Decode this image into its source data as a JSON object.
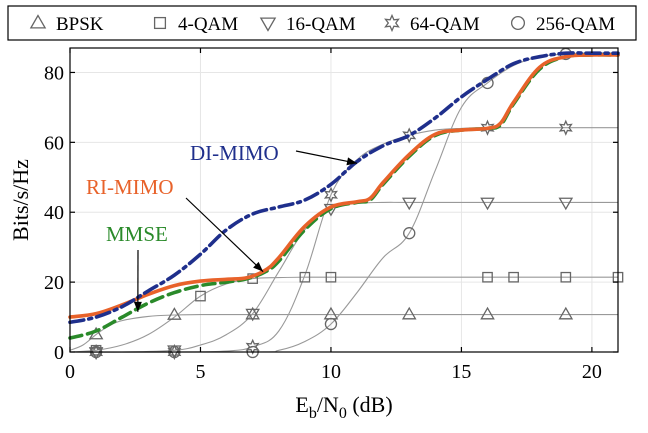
{
  "chart_data": {
    "type": "line",
    "xlabel": "E_b/N_0 (dB)",
    "xlabel_parts": {
      "main": "E",
      "sub1": "b",
      "slash": "/N",
      "sub2": "0",
      "unit": " (dB)"
    },
    "ylabel": "Bits/s/Hz",
    "xlim": [
      0,
      21
    ],
    "ylim": [
      0,
      87
    ],
    "xticks": [
      0,
      5,
      10,
      15,
      20
    ],
    "yticks": [
      0,
      20,
      40,
      60,
      80
    ],
    "legend": [
      {
        "label": "BPSK",
        "marker": "triangle-up"
      },
      {
        "label": "4-QAM",
        "marker": "square"
      },
      {
        "label": "16-QAM",
        "marker": "triangle-down"
      },
      {
        "label": "64-QAM",
        "marker": "hexagram"
      },
      {
        "label": "256-QAM",
        "marker": "circle"
      }
    ],
    "modulation_curves": [
      {
        "name": "BPSK",
        "marker": "triangle-up",
        "ceiling": 10.7,
        "x": [
          0,
          0.5,
          1,
          1.5,
          2,
          3,
          4,
          5,
          7,
          10,
          13,
          16,
          19,
          21
        ],
        "y": [
          0.5,
          2,
          5,
          7.5,
          9,
          10.2,
          10.6,
          10.7,
          10.7,
          10.7,
          10.7,
          10.7,
          10.7,
          10.7
        ],
        "marker_x": [
          1,
          4,
          7,
          10,
          13,
          16,
          19
        ]
      },
      {
        "name": "4-QAM",
        "marker": "square",
        "ceiling": 21.4,
        "x": [
          0,
          1,
          2,
          3,
          4,
          5,
          6,
          7,
          8,
          9,
          10,
          13,
          16,
          19,
          21
        ],
        "y": [
          0,
          0.5,
          2,
          5,
          10,
          16,
          19.5,
          21,
          21.3,
          21.4,
          21.4,
          21.4,
          21.4,
          21.4,
          21.4
        ],
        "marker_x": [
          1,
          5,
          7,
          9,
          10,
          16,
          17,
          19,
          21
        ]
      },
      {
        "name": "16-QAM",
        "marker": "triangle-down",
        "ceiling": 42.8,
        "x": [
          0,
          2,
          4,
          5,
          6,
          7,
          8,
          9,
          10,
          11,
          12,
          13,
          16,
          19,
          21
        ],
        "y": [
          0,
          0,
          0.5,
          2,
          5,
          11,
          23,
          35,
          41,
          42.5,
          42.8,
          42.8,
          42.8,
          42.8,
          42.8
        ],
        "marker_x": [
          1,
          4,
          7,
          10,
          13,
          16,
          19
        ]
      },
      {
        "name": "64-QAM",
        "marker": "hexagram",
        "ceiling": 64.2,
        "x": [
          0,
          4,
          6,
          7,
          8,
          9,
          10,
          11,
          12,
          13,
          14,
          15,
          16,
          19,
          21
        ],
        "y": [
          0,
          0,
          0.3,
          1.5,
          6,
          22,
          45,
          55,
          59.5,
          62,
          63.5,
          64,
          64.2,
          64.2,
          64.2
        ],
        "marker_x": [
          1,
          4,
          7,
          10,
          13,
          16,
          19
        ]
      },
      {
        "name": "256-QAM",
        "marker": "circle",
        "ceiling": 85.6,
        "x": [
          0,
          7,
          8,
          9,
          10,
          11,
          12,
          13,
          14,
          15,
          16,
          17,
          18,
          19,
          20,
          21
        ],
        "y": [
          0,
          0,
          0.5,
          3,
          8,
          17,
          27,
          34,
          52,
          70,
          77,
          82,
          84.5,
          85.3,
          85.6,
          85.6
        ],
        "marker_x": [
          1,
          4,
          7,
          10,
          13,
          16,
          19
        ]
      }
    ],
    "series": [
      {
        "name": "MMSE",
        "color": "#2a8a2a",
        "dash": "dashed",
        "width": 3.6,
        "x": [
          0,
          1,
          2,
          3,
          4,
          5,
          6,
          6.8,
          7.5,
          8,
          9,
          10,
          11,
          11.5,
          12,
          13,
          14,
          15,
          16,
          16.5,
          17,
          18,
          19,
          20,
          21
        ],
        "y": [
          4,
          6,
          10,
          14,
          17,
          19,
          20,
          21,
          23,
          26,
          35,
          41,
          42.8,
          43.5,
          48,
          56,
          62,
          63.5,
          64,
          65,
          71,
          81,
          84.5,
          85,
          85
        ]
      },
      {
        "name": "RI-MIMO",
        "color": "#e8622a",
        "dash": "solid",
        "width": 3.6,
        "x": [
          0,
          1,
          2,
          3,
          4,
          5,
          6,
          6.8,
          7.5,
          8,
          9,
          10,
          11,
          11.5,
          12,
          13,
          14,
          15,
          16,
          16.5,
          17,
          18,
          19,
          20,
          21
        ],
        "y": [
          10,
          11,
          13.5,
          16.5,
          19,
          20.3,
          20.8,
          21.3,
          23.5,
          27,
          36,
          41.5,
          43,
          44,
          48.5,
          56.5,
          62.3,
          63.5,
          64,
          65.5,
          71.5,
          81.5,
          84.5,
          85,
          85
        ]
      },
      {
        "name": "DI-MIMO",
        "color": "#1f2f8c",
        "dash": "dashdot",
        "width": 3.6,
        "x": [
          0,
          1,
          2,
          3,
          4,
          5,
          6,
          7,
          8,
          9,
          10,
          11,
          12,
          13,
          14,
          15,
          16,
          17,
          18,
          19,
          20,
          21
        ],
        "y": [
          8.5,
          10,
          13,
          17.5,
          22,
          28,
          35,
          39.5,
          41.5,
          43.5,
          48,
          54.5,
          59,
          62,
          67,
          73,
          78,
          82.5,
          84.5,
          85.5,
          85.5,
          85.5
        ]
      }
    ],
    "annotations": [
      {
        "text": "DI-MIMO",
        "color": "#1f2f8c",
        "series": "DI-MIMO",
        "arrow_to": [
          11,
          54
        ]
      },
      {
        "text": "RI-MIMO",
        "color": "#e8622a",
        "series": "RI-MIMO",
        "arrow_to": [
          7.4,
          23
        ]
      },
      {
        "text": "MMSE",
        "color": "#2a8a2a",
        "series": "MMSE",
        "arrow_to": [
          2.6,
          11.5
        ]
      }
    ]
  }
}
